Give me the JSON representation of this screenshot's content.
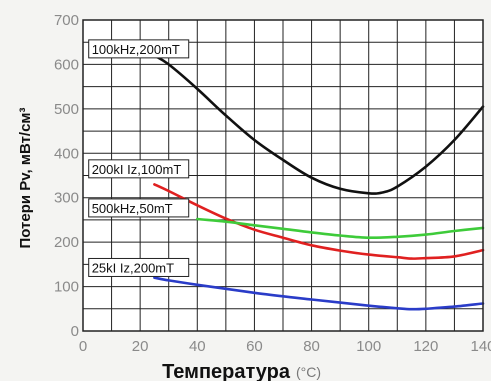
{
  "chart_data": {
    "type": "line",
    "xlabel": "Температура",
    "xunit": "(°C)",
    "ylabel": "Потери Pv, мВт/см³",
    "xlim": [
      0,
      140
    ],
    "ylim": [
      0,
      700
    ],
    "xticks": [
      "0",
      "20",
      "40",
      "60",
      "80",
      "100",
      "120",
      "140"
    ],
    "yticks": [
      "0",
      "100",
      "200",
      "300",
      "400",
      "500",
      "600",
      "700"
    ],
    "grid": true,
    "series": [
      {
        "name": "100kHz,200mT",
        "color": "#111111",
        "x": [
          25,
          30,
          40,
          50,
          60,
          70,
          80,
          90,
          100,
          105,
          110,
          120,
          130,
          140
        ],
        "y": [
          620,
          600,
          545,
          485,
          430,
          385,
          345,
          320,
          310,
          312,
          325,
          370,
          430,
          505
        ]
      },
      {
        "name": "200kHz,100mT",
        "color": "#e02020",
        "x": [
          25,
          30,
          40,
          50,
          60,
          70,
          80,
          90,
          100,
          110,
          115,
          120,
          130,
          140
        ],
        "y": [
          330,
          315,
          283,
          253,
          228,
          210,
          193,
          181,
          172,
          166,
          163,
          164,
          168,
          182
        ]
      },
      {
        "name": "500kHz,50mT",
        "color": "#3ecb3a",
        "x": [
          40,
          50,
          60,
          70,
          80,
          90,
          100,
          110,
          120,
          130,
          140
        ],
        "y": [
          252,
          246,
          238,
          230,
          222,
          215,
          210,
          212,
          217,
          225,
          232
        ]
      },
      {
        "name": "25kHz,200mT",
        "color": "#2a3cc8",
        "x": [
          25,
          30,
          40,
          50,
          60,
          70,
          80,
          90,
          100,
          110,
          115,
          120,
          130,
          140
        ],
        "y": [
          120,
          114,
          104,
          95,
          86,
          78,
          71,
          64,
          57,
          51,
          49,
          50,
          55,
          62
        ]
      }
    ],
    "labels": [
      {
        "text": "100kHz,200mT",
        "x": 2,
        "y": 635,
        "w": 35
      },
      {
        "text": "200kI Iz,100mT",
        "x": 2,
        "y": 365,
        "w": 35
      },
      {
        "text": "500kHz,50mT",
        "x": 2,
        "y": 277,
        "w": 35
      },
      {
        "text": "25kI Iz,200mT",
        "x": 2,
        "y": 143,
        "w": 35
      }
    ]
  }
}
